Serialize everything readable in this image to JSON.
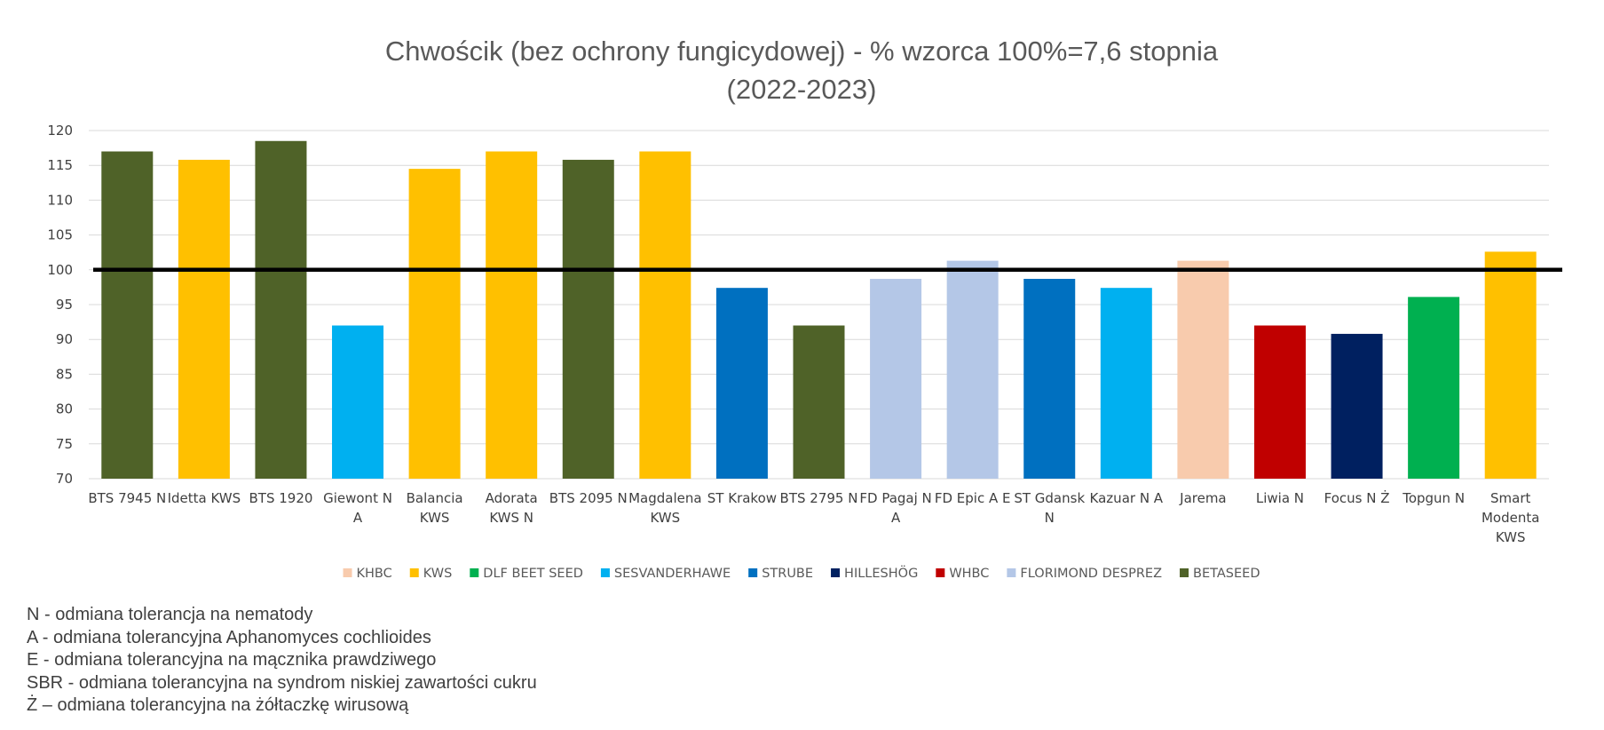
{
  "chart_data": {
    "type": "bar",
    "title": "Chwościk (bez ochrony fungicydowej) - % wzorca 100%=7,6 stopnia",
    "subtitle": "(2022-2023)",
    "ylim": [
      70,
      120
    ],
    "yticks": [
      "70",
      "75",
      "80",
      "85",
      "90",
      "95",
      "100",
      "105",
      "110",
      "115",
      "120"
    ],
    "grid": true,
    "reference_line": 100,
    "legend_position": "bottom",
    "categories": [
      {
        "label": [
          "BTS 7945 N"
        ],
        "value": 117,
        "group": "BETASEED"
      },
      {
        "label": [
          "Idetta KWS"
        ],
        "value": 115.8,
        "group": "KWS"
      },
      {
        "label": [
          "BTS 1920"
        ],
        "value": 118.5,
        "group": "BETASEED"
      },
      {
        "label": [
          "Giewont N",
          "A"
        ],
        "value": 92,
        "group": "SESVANDERHAWE"
      },
      {
        "label": [
          "Balancia",
          "KWS"
        ],
        "value": 114.5,
        "group": "KWS"
      },
      {
        "label": [
          "Adorata",
          "KWS N"
        ],
        "value": 117,
        "group": "KWS"
      },
      {
        "label": [
          "BTS 2095 N"
        ],
        "value": 115.8,
        "group": "BETASEED"
      },
      {
        "label": [
          "Magdalena",
          "KWS"
        ],
        "value": 117,
        "group": "KWS"
      },
      {
        "label": [
          "ST Krakow"
        ],
        "value": 97.4,
        "group": "STRUBE"
      },
      {
        "label": [
          "BTS 2795 N"
        ],
        "value": 92,
        "group": "BETASEED"
      },
      {
        "label": [
          "FD Pagaj N",
          "A"
        ],
        "value": 98.7,
        "group": "FLORIMOND DESPREZ"
      },
      {
        "label": [
          "FD Epic A E"
        ],
        "value": 101.3,
        "group": "FLORIMOND DESPREZ"
      },
      {
        "label": [
          "ST Gdansk",
          "N"
        ],
        "value": 98.7,
        "group": "STRUBE"
      },
      {
        "label": [
          "Kazuar N A"
        ],
        "value": 97.4,
        "group": "SESVANDERHAWE"
      },
      {
        "label": [
          "Jarema"
        ],
        "value": 101.3,
        "group": "KHBC"
      },
      {
        "label": [
          "Liwia N"
        ],
        "value": 92,
        "group": "WHBC"
      },
      {
        "label": [
          "Focus N Ż"
        ],
        "value": 90.8,
        "group": "HILLESHÖG"
      },
      {
        "label": [
          "Topgun N"
        ],
        "value": 96.1,
        "group": "DLF BEET SEED"
      },
      {
        "label": [
          "Smart",
          "Modenta",
          "KWS"
        ],
        "value": 102.6,
        "group": "KWS"
      }
    ],
    "legend": [
      {
        "name": "KHBC",
        "color": "#F8CBAD"
      },
      {
        "name": "KWS",
        "color": "#FFC000"
      },
      {
        "name": "DLF BEET SEED",
        "color": "#00B050"
      },
      {
        "name": "SESVANDERHAWE",
        "color": "#00B0F0"
      },
      {
        "name": "STRUBE",
        "color": "#0070C0"
      },
      {
        "name": "HILLESHÖG",
        "color": "#002060"
      },
      {
        "name": "WHBC",
        "color": "#C00000"
      },
      {
        "name": "FLORIMOND DESPREZ",
        "color": "#B4C7E7"
      },
      {
        "name": "BETASEED",
        "color": "#4F6228"
      }
    ]
  },
  "notes": [
    "N - odmiana tolerancja na nematody",
    "A - odmiana tolerancyjna Aphanomyces cochlioides",
    "E - odmiana tolerancyjna na mącznika prawdziwego",
    "SBR - odmiana tolerancyjna na syndrom niskiej zawartości cukru",
    "Ż – odmiana tolerancyjna na żółtaczkę wirusową"
  ]
}
